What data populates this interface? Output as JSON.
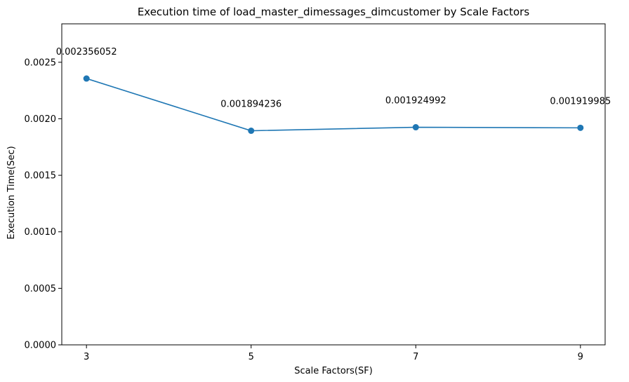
{
  "chart_data": {
    "type": "line",
    "title": "Execution time of load_master_dimessages_dimcustomer by Scale Factors",
    "xlabel": "Scale Factors(SF)",
    "ylabel": "Execution Time(Sec)",
    "x": [
      3,
      5,
      7,
      9
    ],
    "x_tick_labels": [
      "3",
      "5",
      "7",
      "9"
    ],
    "series": [
      {
        "values": [
          0.002356052,
          0.001894236,
          0.001924992,
          0.001919985
        ],
        "value_labels": [
          "0.002356052",
          "0.001894236",
          "0.001924992",
          "0.001919985"
        ],
        "color": "#1f77b4",
        "marker": "circle"
      }
    ],
    "xlim": [
      2.7,
      9.3
    ],
    "ylim": [
      0,
      0.00284
    ],
    "y_ticks": [
      0,
      0.0005,
      0.001,
      0.0015,
      0.002,
      0.0025
    ],
    "y_tick_labels": [
      "0.0000",
      "0.0005",
      "0.0010",
      "0.0015",
      "0.0020",
      "0.0025"
    ],
    "grid": false,
    "legend": "none"
  }
}
